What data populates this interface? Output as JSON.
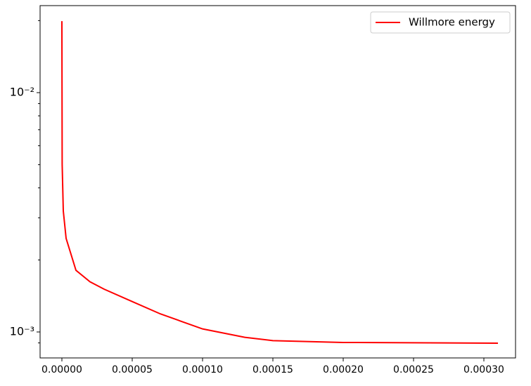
{
  "chart_data": {
    "type": "line",
    "log_y": true,
    "legend_loc": "upper right",
    "x": [
      0,
      2e-07,
      1e-06,
      3e-06,
      1e-05,
      2e-05,
      3e-05,
      5e-05,
      7e-05,
      0.0001,
      0.00013,
      0.00015,
      0.0002,
      0.00031
    ],
    "series": [
      {
        "name": "Willmore energy",
        "color": "#ff0000",
        "values": [
          0.0199,
          0.005,
          0.0032,
          0.00246,
          0.00181,
          0.00162,
          0.00151,
          0.00134,
          0.00119,
          0.00103,
          0.00095,
          0.00092,
          0.000904,
          0.000898
        ]
      }
    ],
    "xlim": [
      -1.55e-05,
      0.0003225
    ],
    "ylim": [
      0.000779,
      0.0231
    ],
    "xticks": [
      {
        "value": 0,
        "label": "0.00000"
      },
      {
        "value": 5e-05,
        "label": "0.00005"
      },
      {
        "value": 0.0001,
        "label": "0.00010"
      },
      {
        "value": 0.00015,
        "label": "0.00015"
      },
      {
        "value": 0.0002,
        "label": "0.00020"
      },
      {
        "value": 0.00025,
        "label": "0.00025"
      },
      {
        "value": 0.0003,
        "label": "0.00030"
      }
    ],
    "yticks": [
      {
        "value": 0.001,
        "label": "10⁻³"
      },
      {
        "value": 0.01,
        "label": "10⁻²"
      }
    ],
    "yminor_ticks": [
      0.0009,
      0.002,
      0.003,
      0.004,
      0.005,
      0.006,
      0.007,
      0.008,
      0.009,
      0.02
    ]
  }
}
